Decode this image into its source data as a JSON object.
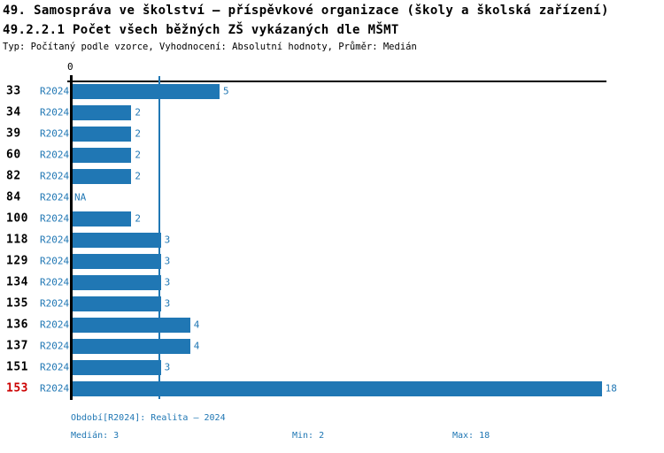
{
  "title": "49. Samospráva ve školství – příspěvkové organizace (školy a školská zařízení)",
  "subtitle": "49.2.2.1 Počet všech běžných ZŠ vykázaných dle MŠMT",
  "meta": "Typ: Počítaný podle vzorce, Vyhodnocení: Absolutní hodnoty, Průměr: Medián",
  "axis": {
    "zero_label": "0"
  },
  "chart_data": {
    "type": "bar",
    "orientation": "horizontal",
    "categories": [
      "33",
      "34",
      "39",
      "60",
      "82",
      "84",
      "100",
      "118",
      "129",
      "134",
      "135",
      "136",
      "137",
      "151",
      "153"
    ],
    "series_label": "R2024",
    "values": [
      5,
      2,
      2,
      2,
      2,
      null,
      2,
      3,
      3,
      3,
      3,
      4,
      4,
      3,
      18
    ],
    "value_labels": [
      "5",
      "2",
      "2",
      "2",
      "2",
      "NA",
      "2",
      "3",
      "3",
      "3",
      "3",
      "4",
      "4",
      "3",
      "18"
    ],
    "highlighted_category": "153",
    "median_reference_line": 3,
    "xlim": [
      0,
      18.2
    ],
    "grid": false,
    "bar_color": "#2077b4",
    "highlight_color": "#cc0000"
  },
  "footer": {
    "period": "Období[R2024]: Realita – 2024",
    "median": "Medián: 3",
    "min": "Min: 2",
    "max": "Max: 18"
  }
}
